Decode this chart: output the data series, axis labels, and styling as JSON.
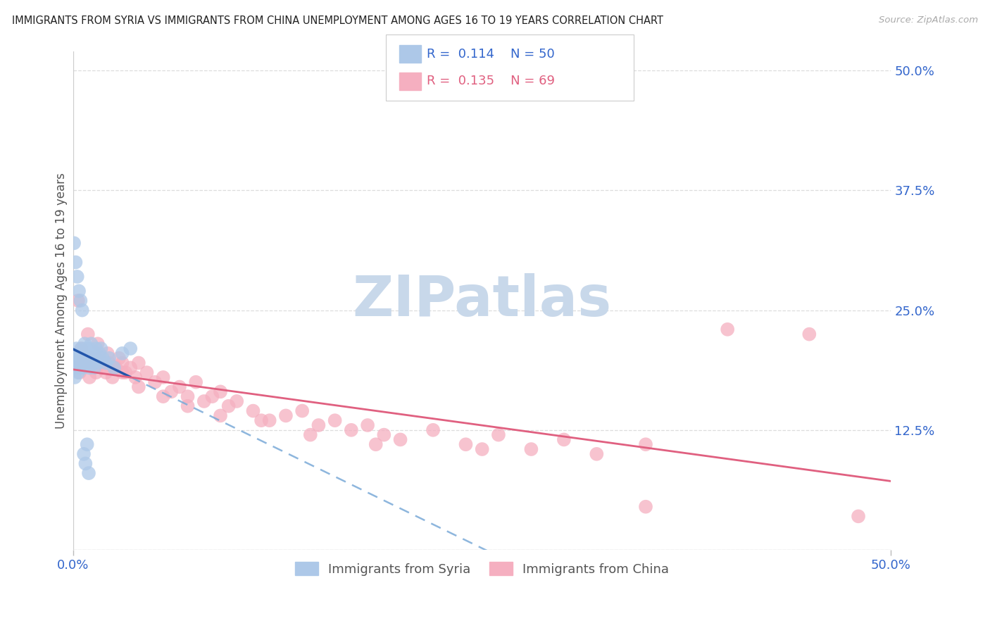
{
  "title": "IMMIGRANTS FROM SYRIA VS IMMIGRANTS FROM CHINA UNEMPLOYMENT AMONG AGES 16 TO 19 YEARS CORRELATION CHART",
  "source": "Source: ZipAtlas.com",
  "ylabel": "Unemployment Among Ages 16 to 19 years",
  "legend_syria": "Immigrants from Syria",
  "legend_china": "Immigrants from China",
  "R_syria": "0.114",
  "N_syria": "50",
  "R_china": "0.135",
  "N_china": "69",
  "color_syria": "#adc8e8",
  "color_china": "#f5afc0",
  "color_syria_line": "#2255aa",
  "color_china_line": "#e06080",
  "color_dashed": "#7aaad8",
  "watermark_text": "ZIPatlas",
  "watermark_color": "#c8d8ea",
  "background_color": "#ffffff",
  "xmin": 0,
  "xmax": 50,
  "ymin": 0,
  "ymax": 50,
  "yticks": [
    0,
    12.5,
    25.0,
    37.5,
    50.0
  ],
  "xticks": [
    0,
    50
  ],
  "syria_x": [
    0.1,
    0.15,
    0.2,
    0.2,
    0.25,
    0.3,
    0.3,
    0.4,
    0.4,
    0.5,
    0.5,
    0.6,
    0.6,
    0.7,
    0.7,
    0.75,
    0.8,
    0.8,
    0.9,
    0.9,
    1.0,
    1.0,
    1.0,
    1.1,
    1.1,
    1.2,
    1.2,
    1.3,
    1.3,
    1.4,
    1.4,
    1.5,
    1.6,
    1.7,
    1.8,
    2.0,
    2.2,
    2.5,
    3.0,
    3.5,
    0.05,
    0.15,
    0.25,
    0.35,
    0.45,
    0.55,
    0.65,
    0.75,
    0.85,
    0.95
  ],
  "syria_y": [
    18.0,
    19.0,
    20.0,
    21.0,
    19.5,
    20.0,
    18.5,
    19.0,
    20.5,
    21.0,
    19.5,
    20.0,
    19.0,
    21.5,
    20.5,
    19.5,
    20.0,
    21.0,
    20.5,
    19.5,
    20.0,
    21.0,
    19.0,
    20.5,
    21.5,
    20.0,
    19.5,
    20.5,
    19.0,
    21.0,
    20.0,
    19.5,
    20.5,
    21.0,
    20.0,
    19.5,
    20.0,
    19.0,
    20.5,
    21.0,
    32.0,
    30.0,
    28.5,
    27.0,
    26.0,
    25.0,
    10.0,
    9.0,
    11.0,
    8.0
  ],
  "china_x": [
    0.2,
    0.4,
    0.6,
    0.8,
    1.0,
    1.2,
    1.4,
    1.6,
    1.8,
    2.0,
    2.2,
    2.4,
    2.6,
    2.8,
    3.0,
    3.2,
    3.5,
    3.8,
    4.0,
    4.5,
    5.0,
    5.5,
    6.0,
    6.5,
    7.0,
    7.5,
    8.0,
    8.5,
    9.0,
    9.5,
    10.0,
    11.0,
    12.0,
    13.0,
    14.0,
    15.0,
    16.0,
    17.0,
    18.0,
    19.0,
    20.0,
    22.0,
    24.0,
    26.0,
    28.0,
    30.0,
    32.0,
    35.0,
    40.0,
    45.0,
    0.3,
    0.5,
    0.9,
    1.1,
    1.5,
    1.7,
    2.1,
    2.5,
    3.0,
    4.0,
    5.5,
    7.0,
    9.0,
    11.5,
    14.5,
    18.5,
    25.0,
    35.0,
    48.0
  ],
  "china_y": [
    19.0,
    18.5,
    20.0,
    19.5,
    18.0,
    19.5,
    18.5,
    20.0,
    19.0,
    18.5,
    19.5,
    18.0,
    19.0,
    20.0,
    19.5,
    18.5,
    19.0,
    18.0,
    19.5,
    18.5,
    17.5,
    18.0,
    16.5,
    17.0,
    16.0,
    17.5,
    15.5,
    16.0,
    16.5,
    15.0,
    15.5,
    14.5,
    13.5,
    14.0,
    14.5,
    13.0,
    13.5,
    12.5,
    13.0,
    12.0,
    11.5,
    12.5,
    11.0,
    12.0,
    10.5,
    11.5,
    10.0,
    11.0,
    23.0,
    22.5,
    26.0,
    21.0,
    22.5,
    20.0,
    21.5,
    19.5,
    20.5,
    19.0,
    18.5,
    17.0,
    16.0,
    15.0,
    14.0,
    13.5,
    12.0,
    11.0,
    10.5,
    4.5,
    3.5
  ]
}
